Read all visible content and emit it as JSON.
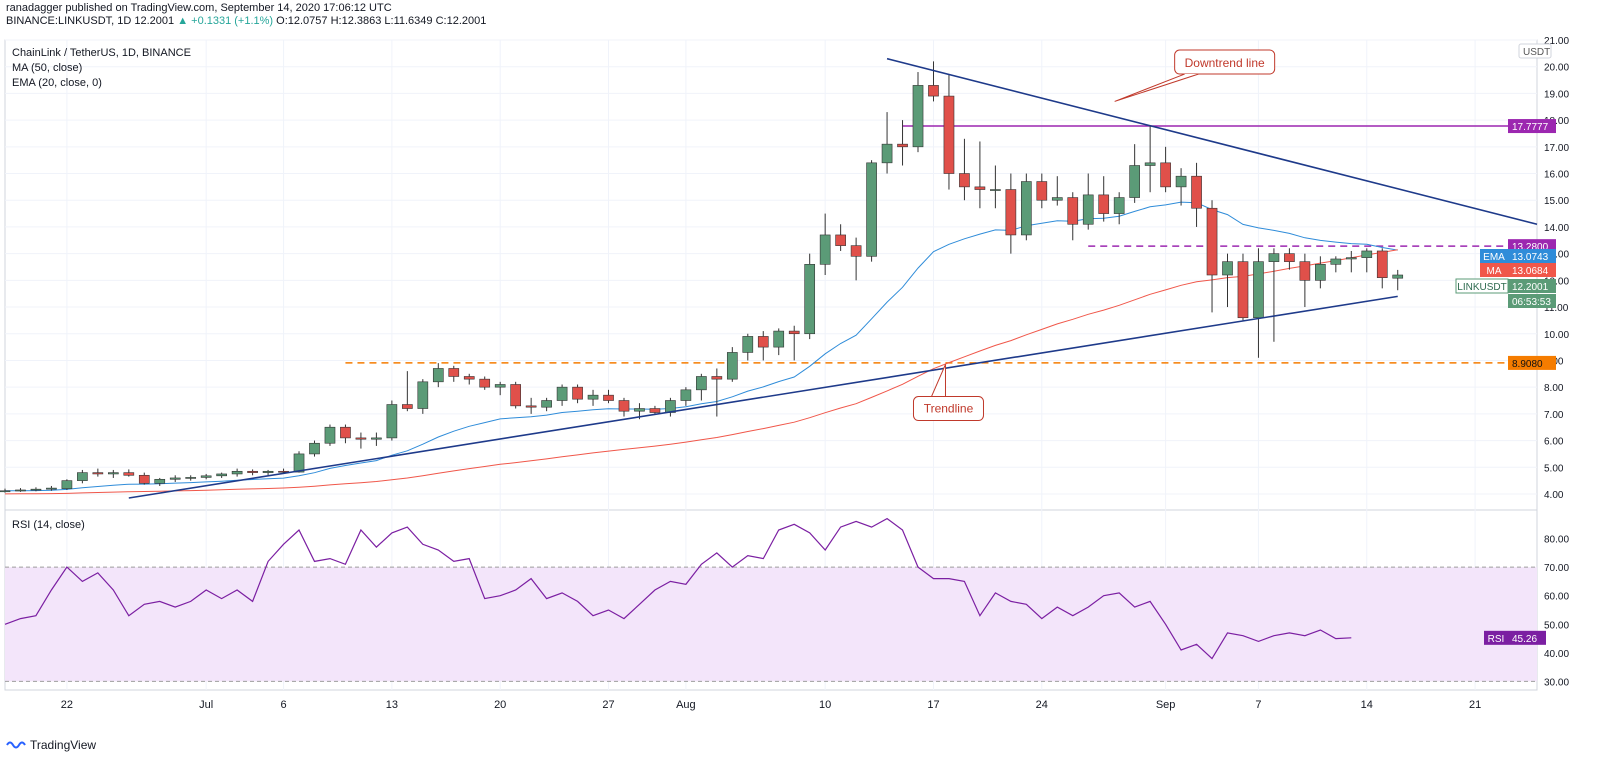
{
  "header": {
    "author_line": "ranadagger published on TradingView.com, September 14, 2020 17:06:12 UTC",
    "symbol_line_prefix": "BINANCE:LINKUSDT, 1D 12.2001",
    "change": "▲ +0.1331 (+1.1%)",
    "ohlc": "O:12.0757 H:12.3863 L:11.6349 C:12.2001"
  },
  "legend": {
    "title": "ChainLink / TetherUS, 1D, BINANCE",
    "ma": "MA (50, close)",
    "ema": "EMA (20, close, 0)",
    "rsi": "RSI (14, close)"
  },
  "footer": {
    "brand": "TradingView"
  },
  "colors": {
    "up": "#5b9b77",
    "down": "#e0504a",
    "ema": "#2f8cd9",
    "ma": "#f0574a",
    "trend": "#1e3a8a",
    "resist_purple": "#9c27b0",
    "support_orange": "#f57c00",
    "rsi": "#7b1fa2",
    "rsi_band": "#f3e5fa"
  },
  "chart_data": [
    {
      "type": "candlestick",
      "name": "LINKUSDT",
      "currency_label": "USDT",
      "y_axis": {
        "range": [
          3.4,
          21.0
        ],
        "ticks": [
          4,
          5,
          6,
          7,
          8,
          9,
          10,
          11,
          12,
          13,
          14,
          15,
          16,
          17,
          18,
          19,
          20,
          21
        ]
      },
      "x_axis": {
        "start": "2020-06-18",
        "end": "2020-09-25",
        "tick_labels": [
          {
            "date": "2020-06-22",
            "label": "22"
          },
          {
            "date": "2020-07-01",
            "label": "Jul"
          },
          {
            "date": "2020-07-06",
            "label": "6"
          },
          {
            "date": "2020-07-13",
            "label": "13"
          },
          {
            "date": "2020-07-20",
            "label": "20"
          },
          {
            "date": "2020-07-27",
            "label": "27"
          },
          {
            "date": "2020-08-01",
            "label": "Aug"
          },
          {
            "date": "2020-08-10",
            "label": "10"
          },
          {
            "date": "2020-08-17",
            "label": "17"
          },
          {
            "date": "2020-08-24",
            "label": "24"
          },
          {
            "date": "2020-09-01",
            "label": "Sep"
          },
          {
            "date": "2020-09-07",
            "label": "7"
          },
          {
            "date": "2020-09-14",
            "label": "14"
          },
          {
            "date": "2020-09-21",
            "label": "21"
          }
        ]
      },
      "first_date": "2020-06-18",
      "ohlc": [
        [
          4.1,
          4.2,
          4.05,
          4.12
        ],
        [
          4.12,
          4.22,
          4.08,
          4.15
        ],
        [
          4.15,
          4.25,
          4.1,
          4.18
        ],
        [
          4.18,
          4.3,
          4.12,
          4.22
        ],
        [
          4.2,
          4.55,
          4.15,
          4.5
        ],
        [
          4.5,
          4.9,
          4.4,
          4.8
        ],
        [
          4.8,
          4.95,
          4.65,
          4.75
        ],
        [
          4.75,
          4.9,
          4.6,
          4.8
        ],
        [
          4.8,
          4.92,
          4.65,
          4.7
        ],
        [
          4.7,
          4.8,
          4.35,
          4.4
        ],
        [
          4.4,
          4.6,
          4.3,
          4.55
        ],
        [
          4.55,
          4.7,
          4.45,
          4.6
        ],
        [
          4.6,
          4.7,
          4.5,
          4.62
        ],
        [
          4.62,
          4.75,
          4.55,
          4.68
        ],
        [
          4.68,
          4.8,
          4.6,
          4.75
        ],
        [
          4.75,
          4.95,
          4.65,
          4.85
        ],
        [
          4.85,
          4.92,
          4.7,
          4.8
        ],
        [
          4.8,
          4.9,
          4.7,
          4.85
        ],
        [
          4.85,
          4.95,
          4.75,
          4.82
        ],
        [
          4.82,
          5.6,
          4.8,
          5.5
        ],
        [
          5.5,
          6.0,
          5.4,
          5.9
        ],
        [
          5.9,
          6.6,
          5.8,
          6.5
        ],
        [
          6.5,
          6.6,
          5.9,
          6.1
        ],
        [
          6.1,
          6.3,
          5.7,
          6.05
        ],
        [
          6.05,
          6.3,
          5.8,
          6.1
        ],
        [
          6.1,
          7.5,
          6.0,
          7.35
        ],
        [
          7.35,
          8.6,
          7.1,
          7.2
        ],
        [
          7.2,
          8.3,
          7.0,
          8.2
        ],
        [
          8.2,
          8.9,
          8.0,
          8.7
        ],
        [
          8.7,
          8.8,
          8.2,
          8.4
        ],
        [
          8.4,
          8.5,
          8.1,
          8.3
        ],
        [
          8.3,
          8.4,
          7.9,
          8.0
        ],
        [
          8.0,
          8.2,
          7.7,
          8.1
        ],
        [
          8.1,
          8.2,
          7.2,
          7.3
        ],
        [
          7.3,
          7.6,
          7.0,
          7.25
        ],
        [
          7.25,
          7.6,
          7.1,
          7.5
        ],
        [
          7.5,
          8.1,
          7.3,
          8.0
        ],
        [
          8.0,
          8.1,
          7.4,
          7.55
        ],
        [
          7.55,
          7.9,
          7.3,
          7.7
        ],
        [
          7.7,
          7.9,
          7.4,
          7.5
        ],
        [
          7.5,
          7.6,
          6.9,
          7.1
        ],
        [
          7.1,
          7.4,
          6.8,
          7.2
        ],
        [
          7.2,
          7.3,
          7.0,
          7.05
        ],
        [
          7.05,
          7.6,
          6.9,
          7.5
        ],
        [
          7.5,
          8.0,
          7.3,
          7.9
        ],
        [
          7.9,
          8.5,
          7.5,
          8.4
        ],
        [
          8.4,
          8.7,
          6.9,
          8.3
        ],
        [
          8.3,
          9.5,
          8.2,
          9.3
        ],
        [
          9.3,
          10.0,
          9.0,
          9.9
        ],
        [
          9.9,
          10.1,
          9.0,
          9.5
        ],
        [
          9.5,
          10.2,
          9.2,
          10.1
        ],
        [
          10.1,
          10.3,
          9.0,
          10.0
        ],
        [
          10.0,
          13.0,
          9.8,
          12.6
        ],
        [
          12.6,
          14.5,
          12.2,
          13.7
        ],
        [
          13.7,
          14.1,
          13.1,
          13.3
        ],
        [
          13.3,
          13.6,
          12.0,
          12.9
        ],
        [
          12.9,
          16.5,
          12.7,
          16.4
        ],
        [
          16.4,
          18.3,
          16.0,
          17.1
        ],
        [
          17.1,
          18.0,
          16.3,
          17.0
        ],
        [
          17.0,
          19.8,
          16.8,
          19.3
        ],
        [
          19.3,
          20.2,
          18.7,
          18.9
        ],
        [
          18.9,
          19.7,
          15.4,
          16.0
        ],
        [
          16.0,
          17.3,
          15.0,
          15.5
        ],
        [
          15.5,
          17.2,
          14.7,
          15.4
        ],
        [
          15.4,
          16.3,
          14.7,
          15.4
        ],
        [
          15.4,
          16.0,
          13.0,
          13.7
        ],
        [
          13.7,
          16.0,
          13.5,
          15.7
        ],
        [
          15.7,
          16.0,
          14.7,
          15.0
        ],
        [
          15.0,
          15.9,
          14.8,
          15.1
        ],
        [
          15.1,
          15.3,
          13.5,
          14.1
        ],
        [
          14.1,
          16.0,
          13.9,
          15.2
        ],
        [
          15.2,
          15.9,
          14.2,
          14.5
        ],
        [
          14.5,
          15.3,
          14.1,
          15.1
        ],
        [
          15.1,
          17.1,
          14.9,
          16.3
        ],
        [
          16.3,
          17.8,
          15.3,
          16.4
        ],
        [
          16.4,
          17.0,
          15.3,
          15.5
        ],
        [
          15.5,
          16.2,
          14.8,
          15.9
        ],
        [
          15.9,
          16.4,
          14.0,
          14.7
        ],
        [
          14.7,
          15.0,
          10.8,
          12.2
        ],
        [
          12.2,
          13.0,
          11.0,
          12.7
        ],
        [
          12.7,
          13.0,
          10.5,
          10.6
        ],
        [
          10.6,
          13.2,
          9.1,
          12.7
        ],
        [
          12.7,
          13.2,
          9.7,
          13.0
        ],
        [
          13.0,
          13.2,
          12.4,
          12.7
        ],
        [
          12.7,
          13.0,
          11.0,
          12.0
        ],
        [
          12.0,
          12.9,
          11.7,
          12.6
        ],
        [
          12.6,
          12.9,
          12.3,
          12.8
        ],
        [
          12.8,
          13.1,
          12.3,
          12.85
        ],
        [
          12.85,
          13.2,
          12.3,
          13.1
        ],
        [
          13.1,
          13.2,
          11.7,
          12.1
        ],
        [
          12.08,
          12.39,
          11.63,
          12.2
        ]
      ],
      "ema": {
        "name": "EMA",
        "label": "13.0743",
        "start": [
          4.05,
          4.1,
          4.15,
          4.2,
          4.25
        ]
      },
      "ma": {
        "name": "MA",
        "label": "13.0684"
      },
      "last_price": "12.2001",
      "countdown": "06:53:53",
      "levels": [
        {
          "value": 17.7777,
          "label": "17.7777",
          "style": "solid",
          "from": "2020-08-15"
        },
        {
          "value": 13.28,
          "label": "13.2800",
          "style": "dashed",
          "from": "2020-08-27"
        },
        {
          "value": 8.908,
          "label": "8.9080",
          "style": "dashed",
          "from": "2020-07-10"
        }
      ],
      "trendlines": [
        {
          "name": "Downtrend line",
          "from": {
            "date": "2020-08-14",
            "value": 20.3
          },
          "to": {
            "date": "2020-09-25",
            "value": 14.1
          }
        },
        {
          "name": "Trendline",
          "from": {
            "date": "2020-06-26",
            "value": 3.85
          },
          "to": {
            "date": "2020-09-16",
            "value": 11.4
          }
        }
      ],
      "annotations": [
        {
          "text": "Downtrend line",
          "date": "2020-08-30",
          "value": 18.0
        },
        {
          "text": "Trendline",
          "date": "2020-08-17",
          "value": 9.0
        }
      ]
    },
    {
      "type": "line",
      "name": "RSI",
      "y_axis": {
        "range": [
          27,
          90
        ],
        "ticks": [
          30,
          40,
          50,
          60,
          70,
          80
        ]
      },
      "band": [
        30,
        70
      ],
      "label": "45.26",
      "values": [
        50,
        52,
        53,
        62,
        70,
        65,
        68,
        62,
        53,
        57,
        58,
        56,
        58,
        62,
        59,
        62,
        58,
        72,
        78,
        83,
        72,
        73,
        71,
        83,
        77,
        82,
        84,
        78,
        76,
        72,
        73,
        59,
        60,
        62,
        66,
        59,
        61,
        58,
        53,
        55,
        52,
        57,
        62,
        65,
        64,
        71,
        75,
        70,
        74,
        73,
        83,
        85,
        82,
        76,
        84,
        86,
        84,
        87,
        83,
        70,
        66,
        66,
        65,
        53,
        61,
        58,
        57,
        52,
        56,
        53,
        56,
        60,
        61,
        56,
        58,
        50,
        41,
        43,
        38,
        47,
        46,
        44,
        46,
        47,
        46,
        48,
        45,
        45.26
      ]
    }
  ]
}
